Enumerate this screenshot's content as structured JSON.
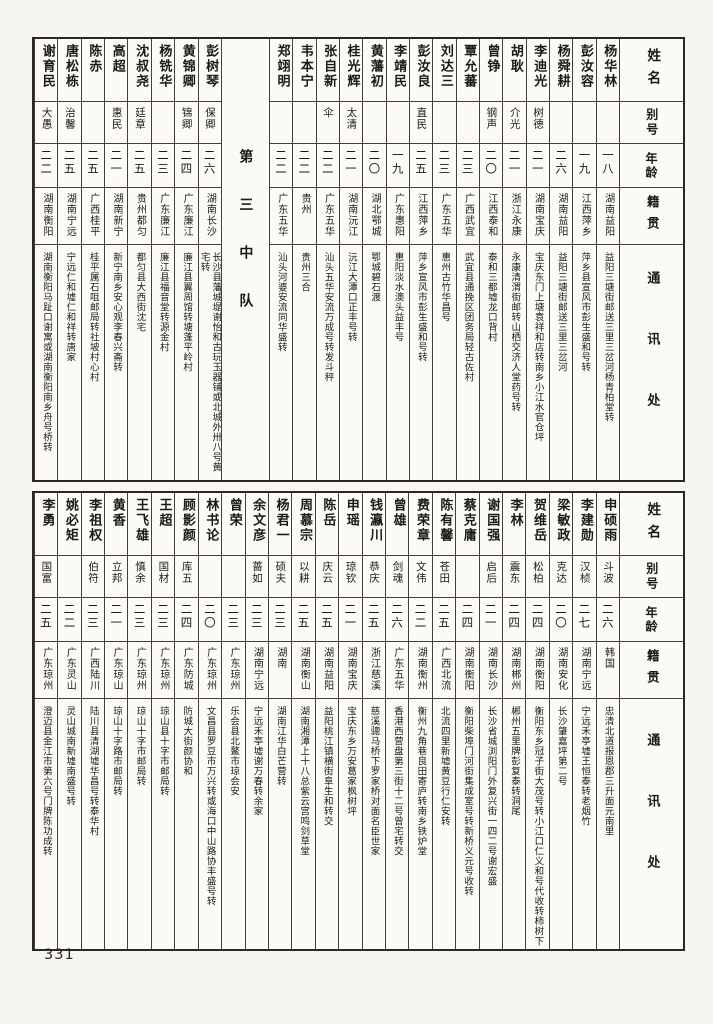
{
  "page_number": "331",
  "headers": {
    "name": "姓名",
    "alias": "别号",
    "age": "年龄",
    "native": "籍贯",
    "address": "通讯处"
  },
  "tables": [
    {
      "unit_label": "第三中队",
      "unit_label_index": 15,
      "people": [
        {
          "name": "杨华林",
          "alias": "",
          "age": "一八",
          "native": "湖南益阳",
          "address": "益阳三塘街邮送三里三岔河杨青柏堂转"
        },
        {
          "name": "彭汝容",
          "alias": "",
          "age": "一九",
          "native": "江西萍乡",
          "address": "萍乡县宣风市彭生盛和号转"
        },
        {
          "name": "杨舜耕",
          "alias": "",
          "age": "二六",
          "native": "湖南益阳",
          "address": "益阳三塘街邮送三里三岔河"
        },
        {
          "name": "李迪光",
          "alias": "树德",
          "age": "二一",
          "native": "湖南宝庆",
          "address": "宝庆东门上塘袁祥和店转南乡小江水官仓坪"
        },
        {
          "name": "胡耿",
          "alias": "介光",
          "age": "二一",
          "native": "浙江永康",
          "address": "永康清渭街邮转山栖交济人堂药号转"
        },
        {
          "name": "曾铮",
          "alias": "钢声",
          "age": "二〇",
          "native": "江西泰和",
          "address": "泰和三都墟龙口背村"
        },
        {
          "name": "覃允蕃",
          "alias": "",
          "age": "二三",
          "native": "广西武宜",
          "address": "武宜县通挽区团务局轻古佐村"
        },
        {
          "name": "刘达三",
          "alias": "",
          "age": "二三",
          "native": "广东五华",
          "address": "惠州古竹华昌号"
        },
        {
          "name": "彭汝良",
          "alias": "直民",
          "age": "二五",
          "native": "江西萍乡",
          "address": "萍乡宣风市彭生盛和号转"
        },
        {
          "name": "李靖民",
          "alias": "",
          "age": "一九",
          "native": "广东惠阳",
          "address": "惠阳淡水澳头益丰号"
        },
        {
          "name": "黄藩初",
          "alias": "",
          "age": "二〇",
          "native": "湖北鄂城",
          "address": "鄂城碧石渡"
        },
        {
          "name": "桂光辉",
          "alias": "太清",
          "age": "二一",
          "native": "湖南沅江",
          "address": "沅江大潭口正丰号转"
        },
        {
          "name": "张自新",
          "alias": "伞",
          "age": "二二",
          "native": "广东五华",
          "address": "汕头五华安流万成号转发斗秤"
        },
        {
          "name": "韦本宁",
          "alias": "",
          "age": "二二",
          "native": "贵州",
          "address": "贵州三合"
        },
        {
          "name": "郑翊明",
          "alias": "",
          "age": "二二",
          "native": "广东五华",
          "address": "汕头河婆安流同华盛转"
        },
        {
          "name": "彭树琴",
          "alias": "保卿",
          "age": "二六",
          "native": "湖南长沙",
          "address": "长沙县藩城堤谢怡和古玩玉器铺或北城外卅八号黄宅转"
        },
        {
          "name": "黄锦卿",
          "alias": "锦卿",
          "age": "二四",
          "native": "广东廉江",
          "address": "廉江县翼周馆转塘蓬平岭村"
        },
        {
          "name": "杨铣华",
          "alias": "",
          "age": "二三",
          "native": "广东廉江",
          "address": "廉江县福音堂转源金村"
        },
        {
          "name": "沈叔尧",
          "alias": "廷章",
          "age": "二五",
          "native": "贵州都匀",
          "address": "都匀县大西街沈宅"
        },
        {
          "name": "高超",
          "alias": "惠民",
          "age": "二一",
          "native": "湖南新宁",
          "address": "新宁南乡安心观李春兴斋转"
        },
        {
          "name": "陈赤",
          "alias": "",
          "age": "二五",
          "native": "广西桂平",
          "address": "桂平属石咀邮局转社坡村心村"
        },
        {
          "name": "唐松栋",
          "alias": "治馨",
          "age": "二五",
          "native": "湖南宁远",
          "address": "宁远仁和墟仁和祥转唐家"
        },
        {
          "name": "谢育民",
          "alias": "大愚",
          "age": "二二",
          "native": "湖南衡阳",
          "address": "湖南衡阳马趾口谢寓或湖南衡阳南乡舟号桥转"
        }
      ]
    },
    {
      "unit_label": "",
      "unit_label_index": -1,
      "people": [
        {
          "name": "申硕雨",
          "alias": "斗波",
          "age": "二六",
          "native": "韩国",
          "address": "忠清北道报恩郡三升面元南里"
        },
        {
          "name": "李建勋",
          "alias": "汉桢",
          "age": "二七",
          "native": "湖南宁远",
          "address": "宁远禾亭墟王恒泰转老烟竹"
        },
        {
          "name": "梁敏政",
          "alias": "克达",
          "age": "二〇",
          "native": "湖南安化",
          "address": "长沙肇嘉坪第二号"
        },
        {
          "name": "贺维岳",
          "alias": "松柏",
          "age": "二四",
          "native": "湖南衡阳",
          "address": "衡阳东乡冠子街大茂号转小江口仁义和号代收转柿树下"
        },
        {
          "name": "李林",
          "alias": "震东",
          "age": "二四",
          "native": "湖南郴州",
          "address": "郴州五里牌彭复泰转洞尾"
        },
        {
          "name": "谢国强",
          "alias": "启后",
          "age": "二一",
          "native": "湖南长沙",
          "address": "长沙省城浏阳门外复兴街一四二号谢宏盛"
        },
        {
          "name": "蔡克庸",
          "alias": "",
          "age": "二四",
          "native": "湖南衡阳",
          "address": "衡阳柴埠门河街集成室号转新桥义元号收转"
        },
        {
          "name": "陈有馨",
          "alias": "苍田",
          "age": "二五",
          "native": "广西北流",
          "address": "北流四里新墟黄豆行仁安转"
        },
        {
          "name": "费荣章",
          "alias": "文伟",
          "age": "二二",
          "native": "湖南衡州",
          "address": "衡州九角巷良田寄庐转南乡铁炉堂"
        },
        {
          "name": "曾雄",
          "alias": "剑魂",
          "age": "二六",
          "native": "广东五华",
          "address": "香港西营盘第三街十二号曾宅转交"
        },
        {
          "name": "钱瀛川",
          "alias": "恭庆",
          "age": "二五",
          "native": "浙江慈溪",
          "address": "慈溪骢马桥下罗家桥对面名臣世家"
        },
        {
          "name": "申瑶",
          "alias": "琼钦",
          "age": "二一",
          "native": "湖南宝庆",
          "address": "宝庆东乡万安葛家枫树坪"
        },
        {
          "name": "陈岳",
          "alias": "庆云",
          "age": "二五",
          "native": "湖南益阳",
          "address": "益阳桃江镇横街阜生和转交"
        },
        {
          "name": "周慕宗",
          "alias": "以耕",
          "age": "二五",
          "native": "湖南衡山",
          "address": "湖南湘潭上十八总紫云宫鸣剑草堂"
        },
        {
          "name": "杨君一",
          "alias": "硕夫",
          "age": "二三",
          "native": "湖南",
          "address": "湖南江华白芒营转"
        },
        {
          "name": "余文彦",
          "alias": "蔷如",
          "age": "二三",
          "native": "湖南宁远",
          "address": "宁远禾亭墟谢万春转余家"
        },
        {
          "name": "曾荣",
          "alias": "",
          "age": "二三",
          "native": "广东琼州",
          "address": "乐会县北鳌市琼会安"
        },
        {
          "name": "林书论",
          "alias": "",
          "age": "二〇",
          "native": "广东琼州",
          "address": "文昌县罗豆市万兴转或海口中山路协丰盛号转"
        },
        {
          "name": "顾影颜",
          "alias": "库五",
          "age": "二四",
          "native": "广东防城",
          "address": "防城大街颜协和"
        },
        {
          "name": "王超",
          "alias": "国材",
          "age": "二三",
          "native": "广东琼州",
          "address": "琼山县十字市邮局转"
        },
        {
          "name": "王飞雄",
          "alias": "慎余",
          "age": "二三",
          "native": "广东琼州",
          "address": "琼山十字市邮局转"
        },
        {
          "name": "黄香",
          "alias": "立邦",
          "age": "二一",
          "native": "广东琼山",
          "address": "琼山十字路市邮局转"
        },
        {
          "name": "李祖权",
          "alias": "伯符",
          "age": "二三",
          "native": "广西陆川",
          "address": "陆川县清湖墟华昌号转泰华村"
        },
        {
          "name": "姚必矩",
          "alias": "",
          "age": "二二",
          "native": "广东灵山",
          "address": "灵山城南新墟南盛号转"
        },
        {
          "name": "李勇",
          "alias": "国富",
          "age": "二五",
          "native": "广东琼州",
          "address": "澄迈县金江市第六号门牌陈功成转"
        }
      ]
    }
  ]
}
